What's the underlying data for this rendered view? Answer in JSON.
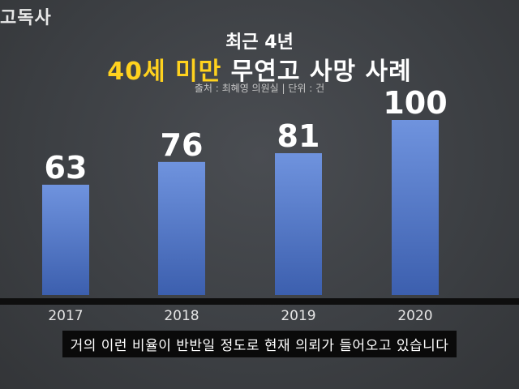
{
  "corner_label": "고독사",
  "subtitle": "최근 4년",
  "title_highlight": "40세 미만",
  "title_rest": "무연고 사망 사례",
  "source": "출처 : 최혜영 의원실 | 단위 : 건",
  "caption": "거의 이런 비율이 반반일 정도로 현재 의뢰가 들어오고 있습니다",
  "colors": {
    "bar_top": "#6f93de",
    "bar_bottom": "#3c5fae",
    "highlight": "#ffd21e",
    "band": "#0e0e0e"
  },
  "chart_data": {
    "type": "bar",
    "categories": [
      "2017",
      "2018",
      "2019",
      "2020"
    ],
    "values": [
      63,
      76,
      81,
      100
    ],
    "data_labels": [
      "63",
      "76",
      "81",
      "100"
    ],
    "ylim": [
      0,
      100
    ]
  }
}
